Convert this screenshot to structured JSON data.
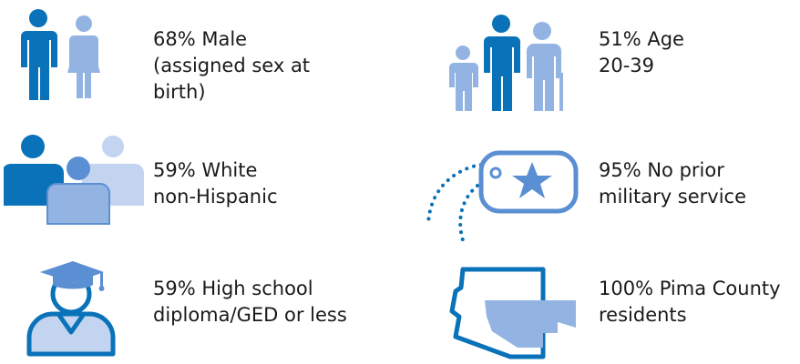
{
  "colors": {
    "primary_blue": "#0a72b8",
    "mid_blue": "#5b8fd3",
    "light_blue": "#93b4e3",
    "pale_blue": "#c3d4f0",
    "text": "#1a1a1a"
  },
  "stats": [
    {
      "icon": "male-female-icon",
      "lines": [
        "68% Male",
        "(assigned sex at",
        "birth)"
      ]
    },
    {
      "icon": "age-group-icon",
      "lines": [
        "51% Age",
        "20-39"
      ]
    },
    {
      "icon": "race-group-icon",
      "lines": [
        "59% White",
        "non-Hispanic"
      ]
    },
    {
      "icon": "dog-tag-star-icon",
      "lines": [
        "95% No prior",
        "military service"
      ]
    },
    {
      "icon": "graduate-icon",
      "lines": [
        "59% High school",
        "diploma/GED or less"
      ]
    },
    {
      "icon": "arizona-map-icon",
      "lines": [
        "100% Pima County",
        "residents"
      ]
    }
  ]
}
